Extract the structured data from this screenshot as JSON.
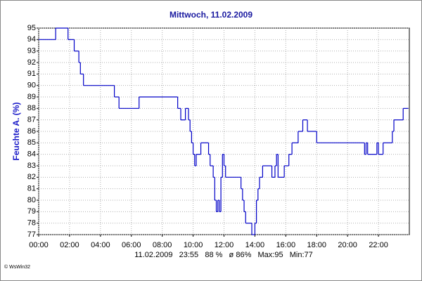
{
  "chart_data": {
    "type": "line",
    "step": true,
    "title": "Mittwoch, 11.02.2009",
    "ylabel": "Feuchte A. (%)",
    "status": "11.02.2009   23:55   88 %   ø 86%   Max:95   Min:77",
    "credit": "© WsWin32",
    "color": "#0000c8",
    "grid": true,
    "xlim": [
      0,
      24
    ],
    "ylim": [
      77,
      95
    ],
    "xticks": [
      {
        "value": 0,
        "label": "00:00"
      },
      {
        "value": 2,
        "label": "02:00"
      },
      {
        "value": 4,
        "label": "04:00"
      },
      {
        "value": 6,
        "label": "06:00"
      },
      {
        "value": 8,
        "label": "08:00"
      },
      {
        "value": 10,
        "label": "10:00"
      },
      {
        "value": 12,
        "label": "12:00"
      },
      {
        "value": 14,
        "label": "14:00"
      },
      {
        "value": 16,
        "label": "16:00"
      },
      {
        "value": 18,
        "label": "18:00"
      },
      {
        "value": 20,
        "label": "20:00"
      },
      {
        "value": 22,
        "label": "22:00"
      }
    ],
    "yticks": [
      77,
      78,
      79,
      80,
      81,
      82,
      83,
      84,
      85,
      86,
      87,
      88,
      89,
      90,
      91,
      92,
      93,
      94,
      95
    ],
    "x": [
      0,
      1.1,
      1.9,
      2.3,
      2.6,
      2.7,
      2.9,
      4.9,
      5.2,
      6.5,
      9.0,
      9.2,
      9.5,
      9.7,
      9.8,
      9.9,
      10.0,
      10.1,
      10.2,
      10.5,
      11.0,
      11.1,
      11.3,
      11.4,
      11.5,
      11.6,
      11.7,
      11.8,
      11.9,
      12.0,
      12.1,
      13.1,
      13.2,
      13.3,
      13.4,
      13.8,
      14.0,
      14.1,
      14.2,
      14.3,
      14.5,
      15.1,
      15.3,
      15.4,
      15.5,
      15.9,
      16.2,
      16.4,
      16.8,
      17.1,
      17.4,
      18.0,
      21.1,
      21.2,
      21.3,
      21.9,
      22.0,
      22.3,
      22.9,
      23.0,
      23.6,
      23.92
    ],
    "values": [
      94,
      95,
      94,
      93,
      92,
      91,
      90,
      89,
      88,
      89,
      88,
      87,
      88,
      87,
      86,
      85,
      84,
      83,
      84,
      85,
      84,
      83,
      82,
      80,
      79,
      80,
      79,
      82,
      84,
      83,
      82,
      81,
      80,
      79,
      78,
      77,
      78,
      80,
      81,
      82,
      83,
      82,
      83,
      84,
      82,
      83,
      84,
      85,
      86,
      87,
      86,
      85,
      84,
      85,
      84,
      85,
      84,
      85,
      86,
      87,
      88,
      88
    ]
  }
}
